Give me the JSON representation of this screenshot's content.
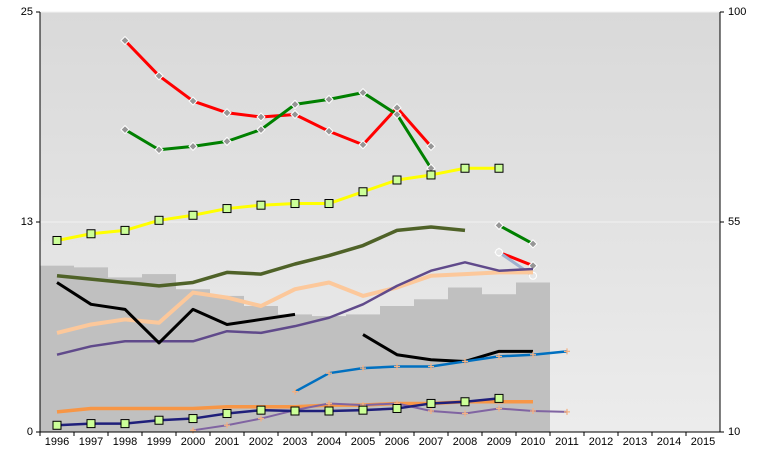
{
  "chart_data": {
    "type": "line",
    "categories": [
      "1996",
      "1997",
      "1998",
      "1999",
      "2000",
      "2001",
      "2002",
      "2003",
      "2004",
      "2005",
      "2006",
      "2007",
      "2008",
      "2009",
      "2010",
      "2011",
      "2012",
      "2013",
      "2014",
      "2015"
    ],
    "ylim": [
      0,
      25
    ],
    "yticks": [
      0,
      {
        "value": 12.5,
        "label": "13"
      },
      25
    ],
    "y2lim": [
      10,
      100
    ],
    "y2ticks": [
      10,
      55,
      100
    ],
    "grid": true,
    "series": [
      {
        "type": "bar",
        "color": "#c0c0c0",
        "values": [
          9.9,
          9.8,
          9.2,
          9.4,
          8.5,
          8.1,
          7.5,
          7.0,
          6.9,
          7.0,
          7.5,
          7.9,
          8.6,
          8.2,
          8.9,
          null,
          null,
          null,
          null,
          null
        ]
      },
      {
        "type": "line",
        "color": "#ff0000",
        "marker": "diamond",
        "line_width": 3,
        "values": [
          null,
          null,
          23.3,
          21.2,
          19.7,
          19.0,
          18.75,
          18.9,
          17.9,
          17.1,
          19.3,
          17.0,
          null,
          10.7,
          9.9,
          null,
          null,
          null,
          null,
          null
        ]
      },
      {
        "type": "line",
        "color": "#008000",
        "marker": "diamond",
        "line_width": 3,
        "values": [
          null,
          null,
          18.0,
          16.8,
          17.0,
          17.3,
          18.0,
          19.5,
          19.8,
          20.2,
          18.9,
          15.7,
          null,
          12.3,
          11.2,
          null,
          null,
          null,
          null,
          null
        ]
      },
      {
        "type": "line",
        "color": "#9fb0cf",
        "marker": "circle",
        "line_width": 3,
        "values": [
          null,
          null,
          null,
          null,
          null,
          null,
          null,
          null,
          null,
          null,
          null,
          null,
          null,
          10.7,
          9.3,
          null,
          null,
          null,
          null,
          null
        ]
      },
      {
        "type": "line",
        "color": "#ffff00",
        "marker": "square",
        "line_width": 3,
        "values": [
          11.4,
          11.8,
          12.0,
          12.6,
          12.9,
          13.3,
          13.5,
          13.6,
          13.6,
          14.3,
          15.0,
          15.3,
          15.7,
          15.7,
          null,
          null,
          null,
          null,
          null,
          null
        ]
      },
      {
        "type": "line",
        "color": "#4f6228",
        "marker": "none",
        "line_width": 3.5,
        "values": [
          9.3,
          9.1,
          8.9,
          8.7,
          8.9,
          9.5,
          9.4,
          10.0,
          10.5,
          11.1,
          12.0,
          12.2,
          12.0,
          null,
          null,
          null,
          null,
          null,
          null,
          null
        ]
      },
      {
        "type": "line",
        "color": "#fcc89b",
        "marker": "none",
        "line_width": 4,
        "values": [
          5.9,
          6.4,
          6.7,
          6.5,
          8.3,
          8.0,
          7.5,
          8.5,
          8.9,
          8.1,
          8.6,
          9.3,
          9.4,
          9.5,
          9.5,
          null,
          null,
          null,
          null,
          null
        ]
      },
      {
        "type": "line",
        "color": "#604a8b",
        "marker": "none",
        "line_width": 2.5,
        "values": [
          4.6,
          5.1,
          5.4,
          5.4,
          5.4,
          6.0,
          5.9,
          6.3,
          6.8,
          7.6,
          8.7,
          9.6,
          10.1,
          9.6,
          9.7,
          null,
          null,
          null,
          null,
          null
        ]
      },
      {
        "type": "line",
        "color": "#000000",
        "marker": "none",
        "line_width": 3,
        "values": [
          8.9,
          7.6,
          7.3,
          5.3,
          7.3,
          6.4,
          6.7,
          7.0,
          null,
          5.8,
          4.6,
          4.3,
          4.2,
          4.8,
          4.8,
          null,
          null,
          null,
          null,
          null
        ]
      },
      {
        "type": "line",
        "color": "#0070c0",
        "marker": "plus",
        "line_width": 2.5,
        "values": [
          null,
          null,
          null,
          null,
          null,
          null,
          null,
          2.4,
          3.5,
          3.8,
          3.9,
          3.9,
          4.2,
          4.5,
          4.6,
          4.8,
          null,
          null,
          null,
          null
        ]
      },
      {
        "type": "line",
        "color": "#f79646",
        "marker": "none",
        "line_width": 3.5,
        "values": [
          1.2,
          1.4,
          1.4,
          1.4,
          1.4,
          1.5,
          1.5,
          1.5,
          1.6,
          1.6,
          1.7,
          1.7,
          1.8,
          1.8,
          1.8,
          null,
          null,
          null,
          null,
          null
        ]
      },
      {
        "type": "line",
        "color": "#8064a2",
        "marker": "plus",
        "line_width": 2,
        "values": [
          null,
          null,
          null,
          null,
          0.1,
          0.4,
          0.8,
          1.3,
          1.7,
          1.6,
          1.7,
          1.25,
          1.1,
          1.4,
          1.25,
          1.2,
          null,
          null,
          null,
          null
        ]
      },
      {
        "type": "line",
        "color": "#1f1f7a",
        "marker": "square",
        "line_width": 2.5,
        "values": [
          0.4,
          0.5,
          0.5,
          0.7,
          0.8,
          1.1,
          1.3,
          1.25,
          1.25,
          1.3,
          1.4,
          1.7,
          1.8,
          2.0,
          null,
          null,
          null,
          null,
          null,
          null
        ]
      }
    ]
  }
}
